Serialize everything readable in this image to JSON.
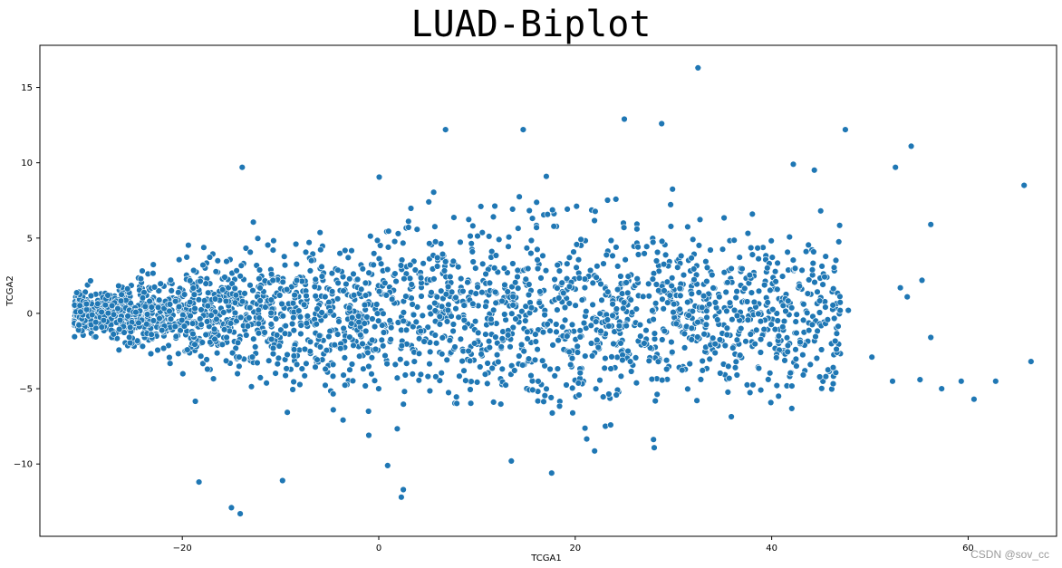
{
  "chart_data": {
    "type": "scatter",
    "title": "LUAD-Biplot",
    "xlabel": "TCGA1",
    "ylabel": "TCGA2",
    "xlim": [
      -34.5,
      69
    ],
    "ylim": [
      -14.8,
      17.8
    ],
    "xticks": [
      -20,
      0,
      20,
      40,
      60
    ],
    "yticks": [
      -10,
      -5,
      0,
      5,
      10,
      15
    ],
    "grid": false,
    "marker_color": "#1f77b4",
    "marker_edge": "#ffffff",
    "cluster": {
      "description_points": "dense cloud of several thousand points",
      "x_range": [
        -31,
        67
      ],
      "y_range": [
        -13.3,
        16.3
      ],
      "cloud_seed": 7,
      "cloud_count": 2600
    },
    "outliers": [
      {
        "x": 32.5,
        "y": 16.3
      },
      {
        "x": 47.5,
        "y": 12.2
      },
      {
        "x": 54.2,
        "y": 11.1
      },
      {
        "x": 52.6,
        "y": 9.7
      },
      {
        "x": 42.2,
        "y": 9.9
      },
      {
        "x": 65.7,
        "y": 8.5
      },
      {
        "x": 56.2,
        "y": 5.9
      },
      {
        "x": 55.3,
        "y": 2.2
      },
      {
        "x": 53.1,
        "y": 1.7
      },
      {
        "x": 53.8,
        "y": 1.1
      },
      {
        "x": 56.2,
        "y": -1.6
      },
      {
        "x": 66.4,
        "y": -3.2
      },
      {
        "x": 50.2,
        "y": -2.9
      },
      {
        "x": 52.3,
        "y": -4.5
      },
      {
        "x": 55.1,
        "y": -4.4
      },
      {
        "x": 57.3,
        "y": -5.0
      },
      {
        "x": 59.3,
        "y": -4.5
      },
      {
        "x": 62.8,
        "y": -4.5
      },
      {
        "x": 60.6,
        "y": -5.7
      },
      {
        "x": 28.8,
        "y": 12.6
      },
      {
        "x": 25.0,
        "y": 12.9
      },
      {
        "x": 14.7,
        "y": 12.2
      },
      {
        "x": 6.8,
        "y": 12.2
      },
      {
        "x": -13.9,
        "y": 9.7
      },
      {
        "x": -18.3,
        "y": -11.2
      },
      {
        "x": -15.0,
        "y": -12.9
      },
      {
        "x": -14.1,
        "y": -13.3
      },
      {
        "x": 2.3,
        "y": -12.2
      },
      {
        "x": 2.5,
        "y": -11.7
      },
      {
        "x": 0.9,
        "y": -10.1
      },
      {
        "x": -9.8,
        "y": -11.1
      },
      {
        "x": 17.6,
        "y": -10.6
      },
      {
        "x": 13.5,
        "y": -9.8
      },
      {
        "x": 47.8,
        "y": 0.2
      }
    ]
  },
  "watermark": "CSDN @sov_cc"
}
